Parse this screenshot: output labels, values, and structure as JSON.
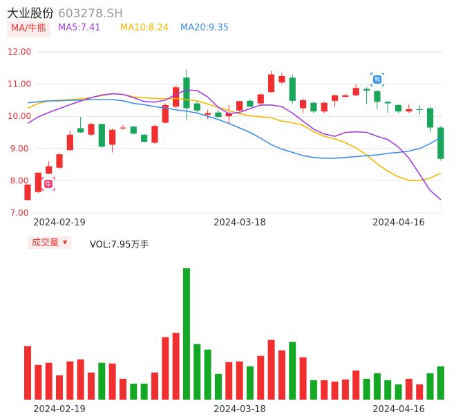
{
  "header": {
    "name": "大业股份",
    "code": "603278.SH"
  },
  "ma_legend": {
    "toggle_label": "MA/牛熊",
    "items": [
      {
        "text": "MA5:7.41",
        "color": "#a33de0"
      },
      {
        "text": "MA10:8.24",
        "color": "#f5b800"
      },
      {
        "text": "MA20:9.35",
        "color": "#3d8ee8"
      }
    ]
  },
  "volume_legend": {
    "toggle_label": "成交量",
    "value_text": "VOL:7.95万手"
  },
  "colors": {
    "up": "#f03030",
    "down": "#1aa65a",
    "vol_down": "#14a824",
    "grid": "#e6e6e6",
    "axis_text": "#e63030",
    "date_text": "#333333"
  },
  "markers": {
    "bull_icon_char": "牛",
    "bear_icon_char": "熊"
  },
  "chart_data": [
    {
      "type": "candlestick",
      "y_tick_labels": [
        "12.00",
        "11.00",
        "10.00",
        "9.00",
        "8.00",
        "7.00"
      ],
      "ylim": [
        7.0,
        12.0
      ],
      "x_tick_labels": [
        "2024-02-19",
        "2024-03-18",
        "2024-04-16"
      ],
      "grid": true,
      "candles": [
        {
          "o": 7.4,
          "c": 7.88,
          "h": 7.9,
          "l": 7.4
        },
        {
          "o": 7.65,
          "c": 8.25,
          "h": 8.26,
          "l": 7.62
        },
        {
          "o": 8.22,
          "c": 8.45,
          "h": 8.6,
          "l": 8.2
        },
        {
          "o": 8.4,
          "c": 8.82,
          "h": 8.86,
          "l": 8.38
        },
        {
          "o": 8.95,
          "c": 9.43,
          "h": 9.56,
          "l": 8.93
        },
        {
          "o": 9.63,
          "c": 9.5,
          "h": 9.98,
          "l": 9.48
        },
        {
          "o": 9.43,
          "c": 9.76,
          "h": 9.8,
          "l": 9.38
        },
        {
          "o": 9.76,
          "c": 9.06,
          "h": 9.78,
          "l": 9.02
        },
        {
          "o": 9.12,
          "c": 9.58,
          "h": 9.62,
          "l": 8.88
        },
        {
          "o": 9.63,
          "c": 9.65,
          "h": 9.73,
          "l": 9.58
        },
        {
          "o": 9.68,
          "c": 9.46,
          "h": 9.7,
          "l": 9.44
        },
        {
          "o": 9.43,
          "c": 9.21,
          "h": 9.45,
          "l": 9.18
        },
        {
          "o": 9.18,
          "c": 9.7,
          "h": 9.74,
          "l": 9.15
        },
        {
          "o": 9.8,
          "c": 10.35,
          "h": 10.4,
          "l": 9.78
        },
        {
          "o": 10.3,
          "c": 10.9,
          "h": 10.95,
          "l": 10.25
        },
        {
          "o": 11.2,
          "c": 10.25,
          "h": 11.45,
          "l": 9.88
        },
        {
          "o": 10.4,
          "c": 10.18,
          "h": 10.48,
          "l": 10.1
        },
        {
          "o": 10.05,
          "c": 10.1,
          "h": 10.2,
          "l": 9.92
        },
        {
          "o": 10.12,
          "c": 9.98,
          "h": 10.2,
          "l": 9.95
        },
        {
          "o": 10.0,
          "c": 10.1,
          "h": 10.35,
          "l": 9.75
        },
        {
          "o": 10.18,
          "c": 10.47,
          "h": 10.48,
          "l": 10.15
        },
        {
          "o": 10.48,
          "c": 10.3,
          "h": 10.52,
          "l": 10.28
        },
        {
          "o": 10.4,
          "c": 10.68,
          "h": 10.7,
          "l": 10.3
        },
        {
          "o": 10.75,
          "c": 11.3,
          "h": 11.4,
          "l": 10.72
        },
        {
          "o": 11.05,
          "c": 11.25,
          "h": 11.35,
          "l": 11.0
        },
        {
          "o": 11.2,
          "c": 10.48,
          "h": 11.3,
          "l": 10.4
        },
        {
          "o": 10.25,
          "c": 10.5,
          "h": 10.55,
          "l": 10.1
        },
        {
          "o": 10.42,
          "c": 10.15,
          "h": 10.46,
          "l": 10.1
        },
        {
          "o": 10.15,
          "c": 10.42,
          "h": 10.46,
          "l": 10.1
        },
        {
          "o": 10.48,
          "c": 10.65,
          "h": 10.68,
          "l": 10.3
        },
        {
          "o": 10.6,
          "c": 10.65,
          "h": 10.7,
          "l": 10.6
        },
        {
          "o": 10.65,
          "c": 10.88,
          "h": 11.0,
          "l": 10.62
        },
        {
          "o": 10.85,
          "c": 10.8,
          "h": 10.9,
          "l": 10.38
        },
        {
          "o": 10.78,
          "c": 10.45,
          "h": 10.82,
          "l": 10.22
        },
        {
          "o": 10.45,
          "c": 10.4,
          "h": 10.48,
          "l": 10.1
        },
        {
          "o": 10.35,
          "c": 10.15,
          "h": 10.38,
          "l": 10.1
        },
        {
          "o": 10.15,
          "c": 10.22,
          "h": 10.38,
          "l": 10.1
        },
        {
          "o": 10.22,
          "c": 10.2,
          "h": 10.34,
          "l": 10.05
        },
        {
          "o": 10.25,
          "c": 9.65,
          "h": 10.28,
          "l": 9.5
        },
        {
          "o": 9.65,
          "c": 8.68,
          "h": 9.7,
          "l": 8.62
        }
      ],
      "volume": [
        {
          "v": 7.7,
          "up": true
        },
        {
          "v": 5.0,
          "up": true
        },
        {
          "v": 5.3,
          "up": true
        },
        {
          "v": 3.5,
          "up": true
        },
        {
          "v": 5.5,
          "up": true
        },
        {
          "v": 5.8,
          "up": true
        },
        {
          "v": 3.9,
          "up": true
        },
        {
          "v": 5.3,
          "up": false
        },
        {
          "v": 5.2,
          "up": true
        },
        {
          "v": 3.0,
          "up": true
        },
        {
          "v": 2.3,
          "up": false
        },
        {
          "v": 2.3,
          "up": false
        },
        {
          "v": 3.9,
          "up": true
        },
        {
          "v": 9.0,
          "up": true
        },
        {
          "v": 9.6,
          "up": true
        },
        {
          "v": 18.9,
          "up": false
        },
        {
          "v": 8.0,
          "up": false
        },
        {
          "v": 7.2,
          "up": false
        },
        {
          "v": 3.7,
          "up": false
        },
        {
          "v": 5.4,
          "up": true
        },
        {
          "v": 5.5,
          "up": true
        },
        {
          "v": 4.8,
          "up": false
        },
        {
          "v": 6.3,
          "up": true
        },
        {
          "v": 8.6,
          "up": true
        },
        {
          "v": 7.1,
          "up": true
        },
        {
          "v": 8.3,
          "up": false
        },
        {
          "v": 6.1,
          "up": true
        },
        {
          "v": 2.8,
          "up": false
        },
        {
          "v": 2.8,
          "up": true
        },
        {
          "v": 2.6,
          "up": true
        },
        {
          "v": 2.9,
          "up": true
        },
        {
          "v": 4.2,
          "up": true
        },
        {
          "v": 3.0,
          "up": false
        },
        {
          "v": 3.8,
          "up": false
        },
        {
          "v": 2.8,
          "up": false
        },
        {
          "v": 2.2,
          "up": false
        },
        {
          "v": 3.0,
          "up": true
        },
        {
          "v": 2.2,
          "up": true
        },
        {
          "v": 3.8,
          "up": false
        },
        {
          "v": 4.8,
          "up": false
        }
      ],
      "ma5": [
        9.78,
        9.98,
        10.12,
        10.24,
        10.36,
        10.47,
        10.58,
        10.66,
        10.7,
        10.68,
        10.58,
        10.46,
        10.44,
        10.5,
        10.68,
        10.82,
        10.8,
        10.6,
        10.28,
        10.08,
        10.12,
        10.24,
        10.35,
        10.35,
        10.3,
        10.1,
        9.85,
        9.6,
        9.45,
        9.38,
        9.5,
        9.52,
        9.5,
        9.38,
        9.28,
        9.05,
        8.7,
        8.2,
        7.7,
        7.41
      ],
      "ma10": [
        10.25,
        10.4,
        10.48,
        10.5,
        10.52,
        10.54,
        10.58,
        10.64,
        10.7,
        10.68,
        10.6,
        10.58,
        10.55,
        10.55,
        10.55,
        10.52,
        10.48,
        10.38,
        10.28,
        10.18,
        10.08,
        10.02,
        9.98,
        9.95,
        9.85,
        9.8,
        9.72,
        9.52,
        9.38,
        9.3,
        9.18,
        9.02,
        8.8,
        8.52,
        8.3,
        8.12,
        8.02,
        8.0,
        8.08,
        8.24
      ],
      "ma20": [
        10.42,
        10.45,
        10.48,
        10.48,
        10.5,
        10.5,
        10.52,
        10.52,
        10.52,
        10.48,
        10.4,
        10.36,
        10.3,
        10.26,
        10.2,
        10.16,
        10.1,
        10.0,
        9.9,
        9.78,
        9.64,
        9.5,
        9.32,
        9.12,
        8.98,
        8.88,
        8.78,
        8.72,
        8.7,
        8.7,
        8.72,
        8.75,
        8.78,
        8.8,
        8.85,
        8.88,
        8.92,
        9.0,
        9.15,
        9.35
      ]
    }
  ]
}
